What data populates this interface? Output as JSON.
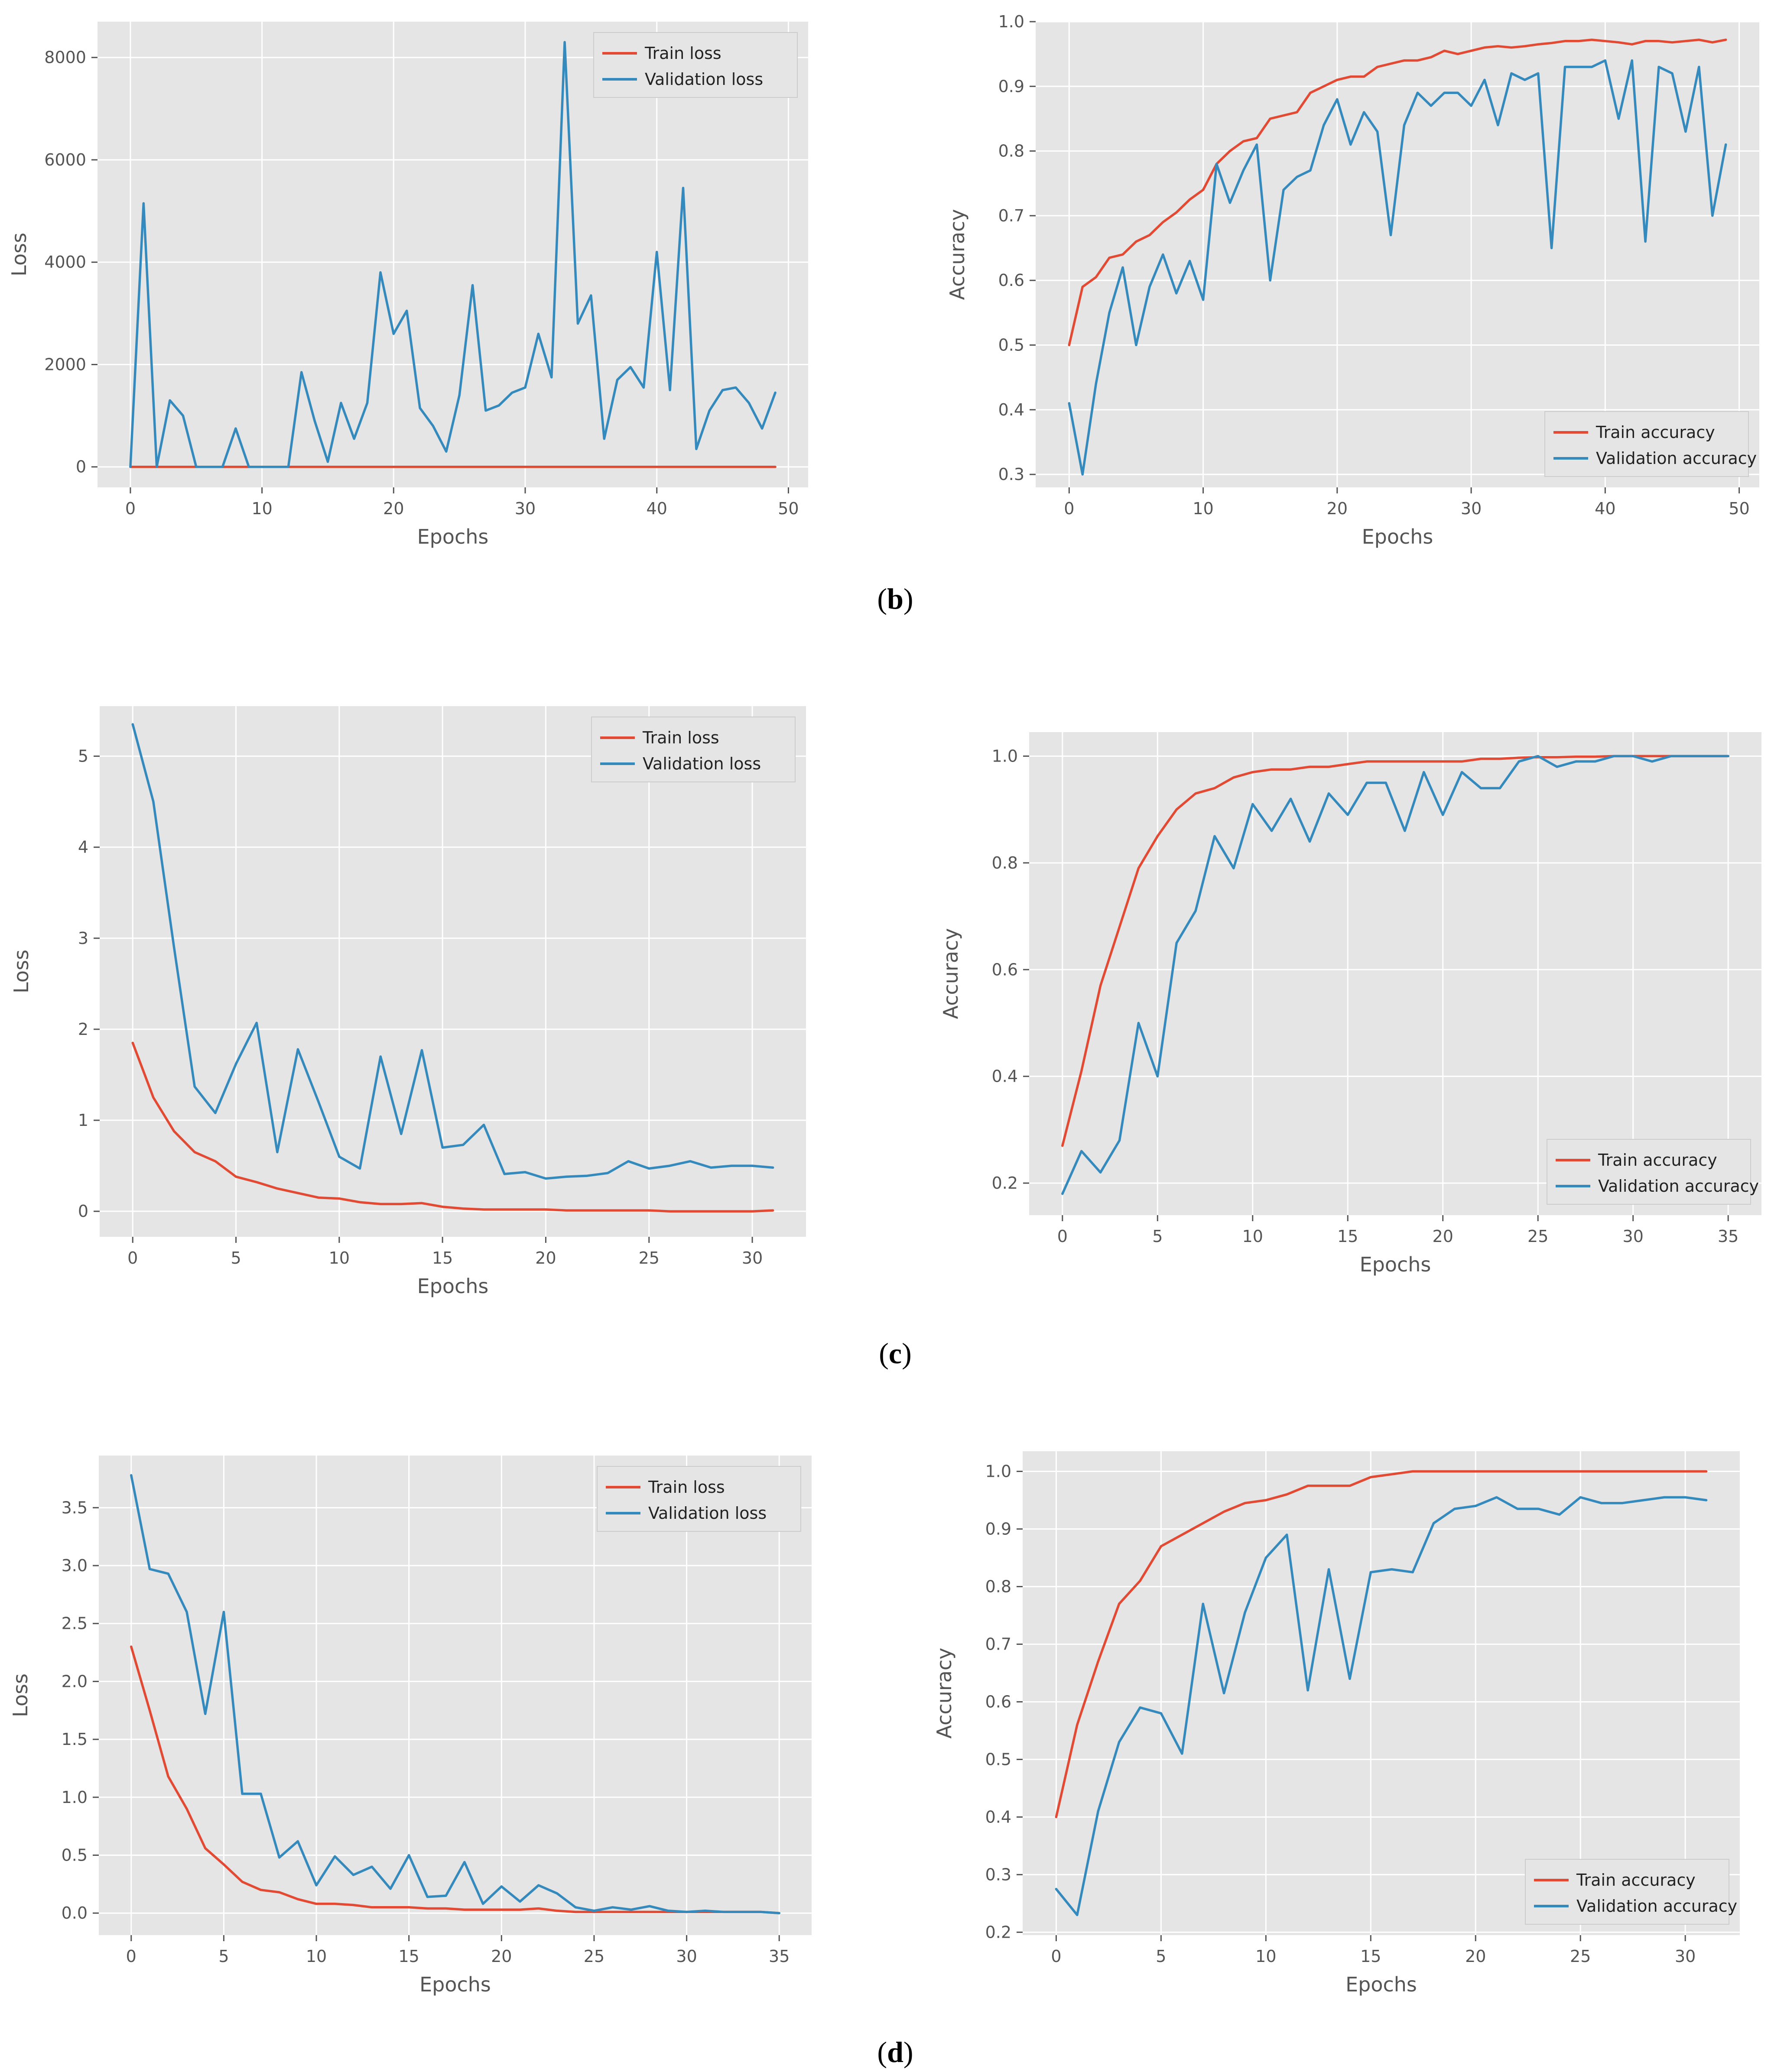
{
  "chart_data": [
    {
      "type": "line",
      "xlabel": "Epochs",
      "ylabel": "Loss",
      "xlim": [
        -2.5,
        51.5
      ],
      "ylim": [
        -400,
        8700
      ],
      "xticks": [
        0,
        10,
        20,
        30,
        40,
        50
      ],
      "yticks": [
        0,
        2000,
        4000,
        6000,
        8000
      ],
      "legend": "top-right",
      "grid": true,
      "series": [
        {
          "name": "Train loss",
          "color": "#E24A33",
          "values": [
            0,
            0,
            0,
            0,
            0,
            0,
            0,
            0,
            0,
            0,
            0,
            0,
            0,
            0,
            0,
            0,
            0,
            0,
            0,
            0,
            0,
            0,
            0,
            0,
            0,
            0,
            0,
            0,
            0,
            0,
            0,
            0,
            0,
            0,
            0,
            0,
            0,
            0,
            0,
            0,
            0,
            0,
            0,
            0,
            0,
            0,
            0,
            0,
            0,
            0
          ]
        },
        {
          "name": "Validation loss",
          "color": "#348ABD",
          "values": [
            0,
            5150,
            0,
            1300,
            1000,
            0,
            0,
            0,
            750,
            0,
            0,
            0,
            0,
            1850,
            900,
            100,
            1250,
            550,
            1250,
            3800,
            2600,
            3050,
            1150,
            800,
            300,
            1400,
            3550,
            1100,
            1200,
            1450,
            1550,
            2600,
            1750,
            8300,
            2800,
            3350,
            550,
            1700,
            1950,
            1550,
            4200,
            1500,
            5450,
            350,
            1100,
            1500,
            1550,
            1250,
            750,
            1450
          ]
        }
      ]
    },
    {
      "type": "line",
      "xlabel": "Epochs",
      "ylabel": "Accuracy",
      "xlim": [
        -2.5,
        51.5
      ],
      "ylim": [
        0.28,
        1.0
      ],
      "xticks": [
        0,
        10,
        20,
        30,
        40,
        50
      ],
      "yticks": [
        0.3,
        0.4,
        0.5,
        0.6,
        0.7,
        0.8,
        0.9,
        1.0
      ],
      "tick_labels_y": [
        "0.3",
        "0.4",
        "0.5",
        "0.6",
        "0.7",
        "0.8",
        "0.9",
        "1.0"
      ],
      "legend": "bottom-right",
      "grid": true,
      "series": [
        {
          "name": "Train accuracy",
          "color": "#E24A33",
          "values": [
            0.5,
            0.59,
            0.605,
            0.635,
            0.64,
            0.66,
            0.67,
            0.69,
            0.705,
            0.725,
            0.74,
            0.78,
            0.8,
            0.815,
            0.82,
            0.85,
            0.855,
            0.86,
            0.89,
            0.9,
            0.91,
            0.915,
            0.915,
            0.93,
            0.935,
            0.94,
            0.94,
            0.945,
            0.955,
            0.95,
            0.955,
            0.96,
            0.962,
            0.96,
            0.962,
            0.965,
            0.967,
            0.97,
            0.97,
            0.972,
            0.97,
            0.968,
            0.965,
            0.97,
            0.97,
            0.968,
            0.97,
            0.972,
            0.968,
            0.972
          ]
        },
        {
          "name": "Validation accuracy",
          "color": "#348ABD",
          "values": [
            0.41,
            0.3,
            0.44,
            0.55,
            0.62,
            0.5,
            0.59,
            0.64,
            0.58,
            0.63,
            0.57,
            0.78,
            0.72,
            0.77,
            0.81,
            0.6,
            0.74,
            0.76,
            0.77,
            0.84,
            0.88,
            0.81,
            0.86,
            0.83,
            0.67,
            0.84,
            0.89,
            0.87,
            0.89,
            0.89,
            0.87,
            0.91,
            0.84,
            0.92,
            0.91,
            0.92,
            0.65,
            0.93,
            0.93,
            0.93,
            0.94,
            0.85,
            0.94,
            0.66,
            0.93,
            0.92,
            0.83,
            0.93,
            0.7,
            0.81
          ]
        }
      ]
    },
    {
      "type": "line",
      "xlabel": "Epochs",
      "ylabel": "Loss",
      "xlim": [
        -1.6,
        32.6
      ],
      "ylim": [
        -0.28,
        5.55
      ],
      "xticks": [
        0,
        5,
        10,
        15,
        20,
        25,
        30
      ],
      "yticks": [
        0,
        1,
        2,
        3,
        4,
        5
      ],
      "legend": "top-right",
      "grid": true,
      "series": [
        {
          "name": "Train loss",
          "color": "#E24A33",
          "values": [
            1.85,
            1.25,
            0.88,
            0.65,
            0.55,
            0.38,
            0.32,
            0.25,
            0.2,
            0.15,
            0.14,
            0.1,
            0.08,
            0.08,
            0.09,
            0.05,
            0.03,
            0.02,
            0.02,
            0.02,
            0.02,
            0.01,
            0.01,
            0.01,
            0.01,
            0.01,
            0.0,
            0.0,
            0.0,
            0.0,
            0.0,
            0.01
          ]
        },
        {
          "name": "Validation loss",
          "color": "#348ABD",
          "values": [
            5.35,
            4.5,
            2.9,
            1.37,
            1.08,
            1.62,
            2.07,
            0.65,
            1.78,
            1.2,
            0.6,
            0.47,
            1.7,
            0.85,
            1.77,
            0.7,
            0.73,
            0.95,
            0.41,
            0.43,
            0.36,
            0.38,
            0.39,
            0.42,
            0.55,
            0.47,
            0.5,
            0.55,
            0.48,
            0.5,
            0.5,
            0.48
          ]
        }
      ]
    },
    {
      "type": "line",
      "xlabel": "Epochs",
      "ylabel": "Accuracy",
      "xlim": [
        -1.75,
        36.75
      ],
      "ylim": [
        0.14,
        1.045
      ],
      "xticks": [
        0,
        5,
        10,
        15,
        20,
        25,
        30,
        35
      ],
      "yticks": [
        0.2,
        0.4,
        0.6,
        0.8,
        1.0
      ],
      "tick_labels_y": [
        "0.2",
        "0.4",
        "0.6",
        "0.8",
        "1.0"
      ],
      "legend": "bottom-right",
      "grid": true,
      "series": [
        {
          "name": "Train accuracy",
          "color": "#E24A33",
          "values": [
            0.27,
            0.41,
            0.57,
            0.68,
            0.79,
            0.85,
            0.9,
            0.93,
            0.94,
            0.96,
            0.97,
            0.975,
            0.975,
            0.98,
            0.98,
            0.985,
            0.99,
            0.99,
            0.99,
            0.99,
            0.99,
            0.99,
            0.995,
            0.995,
            0.997,
            0.998,
            0.998,
            0.999,
            0.999,
            1.0,
            1.0,
            1.0,
            1.0,
            1.0,
            1.0,
            1.0
          ]
        },
        {
          "name": "Validation accuracy",
          "color": "#348ABD",
          "values": [
            0.18,
            0.26,
            0.22,
            0.28,
            0.5,
            0.4,
            0.65,
            0.71,
            0.85,
            0.79,
            0.91,
            0.86,
            0.92,
            0.84,
            0.93,
            0.89,
            0.95,
            0.95,
            0.86,
            0.97,
            0.89,
            0.97,
            0.94,
            0.94,
            0.99,
            1.0,
            0.98,
            0.99,
            0.99,
            1.0,
            1.0,
            0.99,
            1.0,
            1.0,
            1.0,
            1.0
          ]
        }
      ]
    },
    {
      "type": "line",
      "xlabel": "Epochs",
      "ylabel": "Loss",
      "xlim": [
        -1.75,
        36.75
      ],
      "ylim": [
        -0.19,
        3.95
      ],
      "xticks": [
        0,
        5,
        10,
        15,
        20,
        25,
        30,
        35
      ],
      "yticks": [
        0.0,
        0.5,
        1.0,
        1.5,
        2.0,
        2.5,
        3.0,
        3.5
      ],
      "tick_labels_y": [
        "0.0",
        "0.5",
        "1.0",
        "1.5",
        "2.0",
        "2.5",
        "3.0",
        "3.5"
      ],
      "legend": "top-right",
      "grid": true,
      "series": [
        {
          "name": "Train loss",
          "color": "#E24A33",
          "values": [
            2.3,
            1.75,
            1.18,
            0.9,
            0.56,
            0.42,
            0.27,
            0.2,
            0.18,
            0.12,
            0.08,
            0.08,
            0.07,
            0.05,
            0.05,
            0.05,
            0.04,
            0.04,
            0.03,
            0.03,
            0.03,
            0.03,
            0.04,
            0.02,
            0.01,
            0.01,
            0.01,
            0.01,
            0.01,
            0.01,
            0.01,
            0.01,
            0.01,
            0.01,
            0.01,
            0.0
          ]
        },
        {
          "name": "Validation loss",
          "color": "#348ABD",
          "values": [
            3.78,
            2.97,
            2.93,
            2.6,
            1.72,
            2.6,
            1.03,
            1.03,
            0.48,
            0.62,
            0.24,
            0.49,
            0.33,
            0.4,
            0.21,
            0.5,
            0.14,
            0.15,
            0.44,
            0.08,
            0.23,
            0.1,
            0.24,
            0.17,
            0.05,
            0.02,
            0.05,
            0.03,
            0.06,
            0.02,
            0.01,
            0.02,
            0.01,
            0.01,
            0.01,
            0.0
          ]
        }
      ]
    },
    {
      "type": "line",
      "xlabel": "Epochs",
      "ylabel": "Accuracy",
      "xlim": [
        -1.6,
        32.6
      ],
      "ylim": [
        0.195,
        1.035
      ],
      "xticks": [
        0,
        5,
        10,
        15,
        20,
        25,
        30
      ],
      "yticks": [
        0.2,
        0.3,
        0.4,
        0.5,
        0.6,
        0.7,
        0.8,
        0.9,
        1.0
      ],
      "tick_labels_y": [
        "0.2",
        "0.3",
        "0.4",
        "0.5",
        "0.6",
        "0.7",
        "0.8",
        "0.9",
        "1.0"
      ],
      "legend": "bottom-right",
      "grid": true,
      "series": [
        {
          "name": "Train accuracy",
          "color": "#E24A33",
          "values": [
            0.4,
            0.56,
            0.67,
            0.77,
            0.81,
            0.87,
            0.89,
            0.91,
            0.93,
            0.945,
            0.95,
            0.96,
            0.975,
            0.975,
            0.975,
            0.99,
            0.995,
            1.0,
            1.0,
            1.0,
            1.0,
            1.0,
            1.0,
            1.0,
            1.0,
            1.0,
            1.0,
            1.0,
            1.0,
            1.0,
            1.0,
            1.0
          ]
        },
        {
          "name": "Validation accuracy",
          "color": "#348ABD",
          "values": [
            0.275,
            0.23,
            0.41,
            0.53,
            0.59,
            0.58,
            0.51,
            0.77,
            0.615,
            0.755,
            0.85,
            0.89,
            0.62,
            0.83,
            0.64,
            0.825,
            0.83,
            0.825,
            0.91,
            0.935,
            0.94,
            0.955,
            0.935,
            0.935,
            0.925,
            0.955,
            0.945,
            0.945,
            0.95,
            0.955,
            0.955,
            0.95
          ]
        }
      ]
    }
  ],
  "captions": [
    {
      "open": "(",
      "letter": "b",
      "close": ")"
    },
    {
      "open": "(",
      "letter": "c",
      "close": ")"
    },
    {
      "open": "(",
      "letter": "d",
      "close": ")"
    }
  ]
}
